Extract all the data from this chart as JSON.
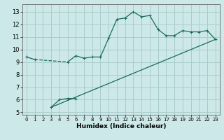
{
  "title": "",
  "xlabel": "Humidex (Indice chaleur)",
  "background_color": "#cce8e8",
  "grid_color": "#aacccc",
  "line_color": "#1a6b5a",
  "xlim": [
    -0.5,
    23.5
  ],
  "ylim": [
    4.8,
    13.6
  ],
  "yticks": [
    5,
    6,
    7,
    8,
    9,
    10,
    11,
    12,
    13
  ],
  "xticks": [
    0,
    1,
    2,
    3,
    4,
    5,
    6,
    7,
    8,
    9,
    10,
    11,
    12,
    13,
    14,
    15,
    16,
    17,
    18,
    19,
    20,
    21,
    22,
    23
  ],
  "curve1": {
    "x": [
      0,
      1,
      5,
      6,
      7,
      8,
      9,
      10,
      11,
      12,
      13,
      14,
      15,
      16,
      17,
      18,
      19,
      20,
      21,
      22,
      23
    ],
    "y": [
      9.4,
      9.2,
      9.0,
      9.5,
      9.3,
      9.4,
      9.4,
      10.9,
      12.4,
      12.5,
      13.0,
      12.6,
      12.7,
      11.6,
      11.1,
      11.1,
      11.5,
      11.4,
      11.4,
      11.5,
      10.8
    ]
  },
  "curve1_seg1": {
    "x": [
      0,
      1
    ],
    "y": [
      9.4,
      9.2
    ]
  },
  "curve1_dash": {
    "x": [
      1,
      5
    ],
    "y": [
      9.2,
      9.0
    ]
  },
  "curve1_seg2": {
    "x": [
      5,
      6,
      7,
      8,
      9
    ],
    "y": [
      9.0,
      9.5,
      9.3,
      9.4,
      9.4
    ]
  },
  "curve1_seg3": {
    "x": [
      9,
      10,
      11,
      12,
      13,
      14,
      15,
      16,
      17,
      18,
      19,
      20,
      21,
      22,
      23
    ],
    "y": [
      9.4,
      10.9,
      12.4,
      12.5,
      13.0,
      12.6,
      12.7,
      11.6,
      11.1,
      11.1,
      11.5,
      11.4,
      11.4,
      11.5,
      10.8
    ]
  },
  "curve2_seg1": {
    "x": [
      3,
      4,
      5,
      6
    ],
    "y": [
      5.4,
      6.0,
      6.1,
      6.1
    ]
  },
  "curve2_line": {
    "x": [
      3,
      23
    ],
    "y": [
      5.4,
      10.8
    ]
  },
  "lw": 0.9,
  "ms": 2.5
}
